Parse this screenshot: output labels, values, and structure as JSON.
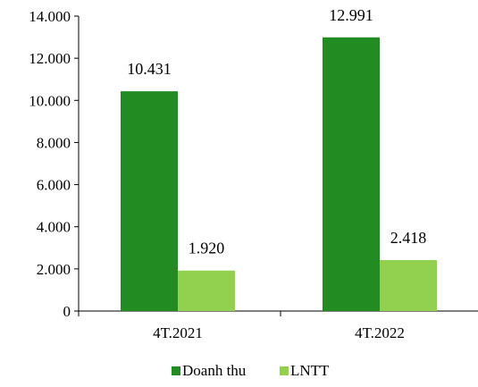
{
  "chart_data": {
    "type": "bar",
    "categories": [
      "4T.2021",
      "4T.2022"
    ],
    "series": [
      {
        "name": "Doanh thu",
        "values": [
          10431,
          12991
        ],
        "labels": [
          "10.431",
          "12.991"
        ],
        "color": "#228B22"
      },
      {
        "name": "LNTT",
        "values": [
          1920,
          2418
        ],
        "labels": [
          "1.920",
          "2.418"
        ],
        "color": "#92D050"
      }
    ],
    "ylim": [
      0,
      14000
    ],
    "yticks": [
      0,
      2000,
      4000,
      6000,
      8000,
      10000,
      12000,
      14000
    ],
    "ytick_labels": [
      "0",
      "2.000",
      "4.000",
      "6.000",
      "8.000",
      "10.000",
      "12.000",
      "14.000"
    ],
    "title": "",
    "xlabel": "",
    "ylabel": "",
    "grid": false,
    "legend_position": "bottom"
  }
}
